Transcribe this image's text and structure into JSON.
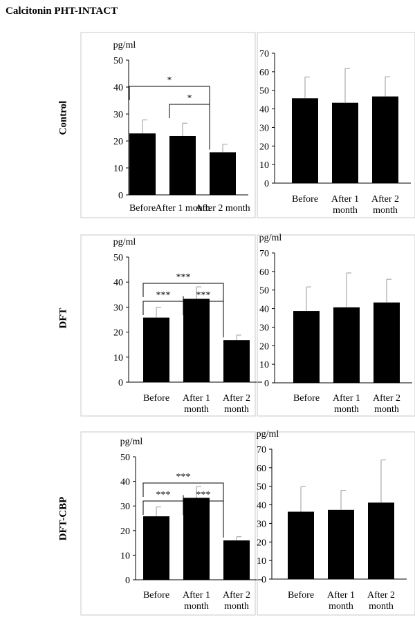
{
  "title": "Calcitonin PHT-INTACT",
  "row_labels": [
    "Control",
    "DFT",
    "DFT-CBP"
  ],
  "colors": {
    "bar": "#000000",
    "axis": "#000000",
    "frame": "#c8c8c8",
    "errorbar": "#999999"
  },
  "chart_data": [
    {
      "id": "control-left",
      "type": "bar",
      "ylabel": "pg/ml",
      "ylim": [
        0,
        50
      ],
      "yticks": [
        0,
        10,
        20,
        30,
        40,
        50
      ],
      "categories": [
        [
          "Before"
        ],
        [
          "After 1 month"
        ],
        [
          "After 2 month"
        ]
      ],
      "values": [
        22.8,
        21.8,
        15.8
      ],
      "errors": [
        5.0,
        4.8,
        3.0
      ],
      "significance": [
        {
          "from": 0,
          "to": 2,
          "label": "*"
        },
        {
          "from": 1,
          "to": 2,
          "label": "*"
        }
      ]
    },
    {
      "id": "control-right",
      "type": "bar",
      "ylabel": "",
      "ylim": [
        0,
        70
      ],
      "yticks": [
        0,
        10,
        20,
        30,
        40,
        50,
        60,
        70
      ],
      "categories": [
        [
          "Before"
        ],
        [
          "After 1",
          "month"
        ],
        [
          "After 2",
          "month"
        ]
      ],
      "values": [
        45.7,
        43.3,
        46.7
      ],
      "errors": [
        11.5,
        18.5,
        10.6
      ],
      "significance": []
    },
    {
      "id": "dft-left",
      "type": "bar",
      "ylabel": "pg/ml",
      "ylim": [
        0,
        50
      ],
      "yticks": [
        0,
        10,
        20,
        30,
        40,
        50
      ],
      "categories": [
        [
          "Before"
        ],
        [
          "After 1",
          "month"
        ],
        [
          "After 2",
          "month"
        ]
      ],
      "values": [
        25.8,
        33.3,
        16.8
      ],
      "errors": [
        4.2,
        4.8,
        2.0
      ],
      "significance": [
        {
          "from": 0,
          "to": 2,
          "label": "***"
        },
        {
          "from": 0,
          "to": 1,
          "label": "***"
        },
        {
          "from": 1,
          "to": 2,
          "label": "***"
        }
      ]
    },
    {
      "id": "dft-right",
      "type": "bar",
      "ylabel": "pg/ml",
      "ylim": [
        0,
        70
      ],
      "yticks": [
        0,
        10,
        20,
        30,
        40,
        50,
        60,
        70
      ],
      "categories": [
        [
          "Before"
        ],
        [
          "After 1",
          "month"
        ],
        [
          "After 2",
          "month"
        ]
      ],
      "values": [
        38.7,
        40.7,
        43.3
      ],
      "errors": [
        13.0,
        18.5,
        12.5
      ],
      "significance": []
    },
    {
      "id": "dftcbp-left",
      "type": "bar",
      "ylabel": "pg/ml",
      "ylim": [
        0,
        50
      ],
      "yticks": [
        0,
        10,
        20,
        30,
        40,
        50
      ],
      "categories": [
        [
          "Before"
        ],
        [
          "After 1",
          "month"
        ],
        [
          "After 2",
          "month"
        ]
      ],
      "values": [
        25.8,
        33.3,
        16.0
      ],
      "errors": [
        3.8,
        4.5,
        1.5
      ],
      "significance": [
        {
          "from": 0,
          "to": 2,
          "label": "***"
        },
        {
          "from": 0,
          "to": 1,
          "label": "***"
        },
        {
          "from": 1,
          "to": 2,
          "label": "***"
        }
      ]
    },
    {
      "id": "dftcbp-right",
      "type": "bar",
      "ylabel": "pg/ml",
      "ylim": [
        0,
        70
      ],
      "yticks": [
        0,
        10,
        20,
        30,
        40,
        50,
        60,
        70
      ],
      "categories": [
        [
          "Before"
        ],
        [
          "After 1",
          "month"
        ],
        [
          "After 2",
          "month"
        ]
      ],
      "values": [
        36.3,
        37.3,
        41.2
      ],
      "errors": [
        13.5,
        10.5,
        23.0
      ],
      "significance": []
    }
  ]
}
